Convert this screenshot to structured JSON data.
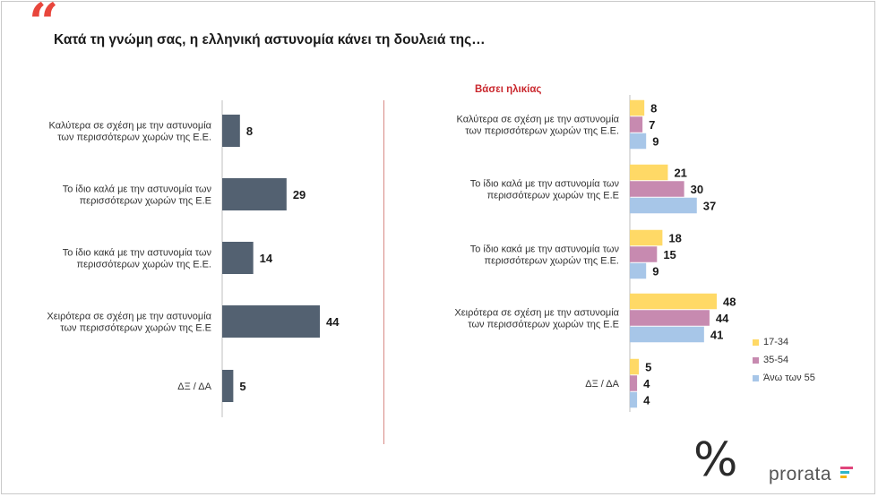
{
  "header": {
    "quote_glyph": "“",
    "title": "Κατά τη γνώμη σας, η ελληνική αστυνομία κάνει τη δουλειά της…"
  },
  "right_subtitle": "Βάσει ηλικίας",
  "chart_data": [
    {
      "type": "bar",
      "orientation": "horizontal",
      "categories": [
        [
          "Καλύτερα σε σχέση με την αστυνομία",
          "των περισσότερων χωρών της Ε.Ε."
        ],
        [
          "Το ίδιο καλά με την αστυνομία των",
          "περισσότερων χωρών της Ε.Ε"
        ],
        [
          "Το ίδιο κακά με την αστυνομία των",
          "περισσότερων χωρών της Ε.Ε."
        ],
        [
          "Χειρότερα σε σχέση με την αστυνομία",
          "των περισσότερων χωρών της Ε.Ε"
        ],
        [
          "ΔΞ / ΔΑ"
        ]
      ],
      "values": [
        8,
        29,
        14,
        44,
        5
      ],
      "color": "#536171",
      "xlim": [
        0,
        60
      ]
    },
    {
      "type": "bar",
      "orientation": "horizontal",
      "title": "Βάσει ηλικίας",
      "categories": [
        [
          "Καλύτερα σε σχέση με την αστυνομία",
          "των περισσότερων χωρών της Ε.Ε."
        ],
        [
          "Το ίδιο καλά με την αστυνομία των",
          "περισσότερων χωρών της Ε.Ε"
        ],
        [
          "Το ίδιο κακά με την αστυνομία των",
          "περισσότερων χωρών της Ε.Ε."
        ],
        [
          "Χειρότερα σε σχέση με την αστυνομία",
          "των περισσότερων χωρών της Ε.Ε"
        ],
        [
          "ΔΞ / ΔΑ"
        ]
      ],
      "series": [
        {
          "name": "17-34",
          "color": "#ffd966",
          "values": [
            8,
            21,
            18,
            48,
            5
          ]
        },
        {
          "name": "35-54",
          "color": "#c78ab0",
          "values": [
            7,
            30,
            15,
            44,
            4
          ]
        },
        {
          "name": "Άνω των 55",
          "color": "#a7c6e8",
          "values": [
            9,
            37,
            9,
            41,
            4
          ]
        }
      ],
      "legend_position": "bottom-right",
      "xlim": [
        0,
        60
      ]
    }
  ],
  "logo": {
    "symbol": "%",
    "text": "prorata",
    "bar_colors": [
      "#e0457b",
      "#2fb5c9",
      "#f4b400"
    ]
  }
}
